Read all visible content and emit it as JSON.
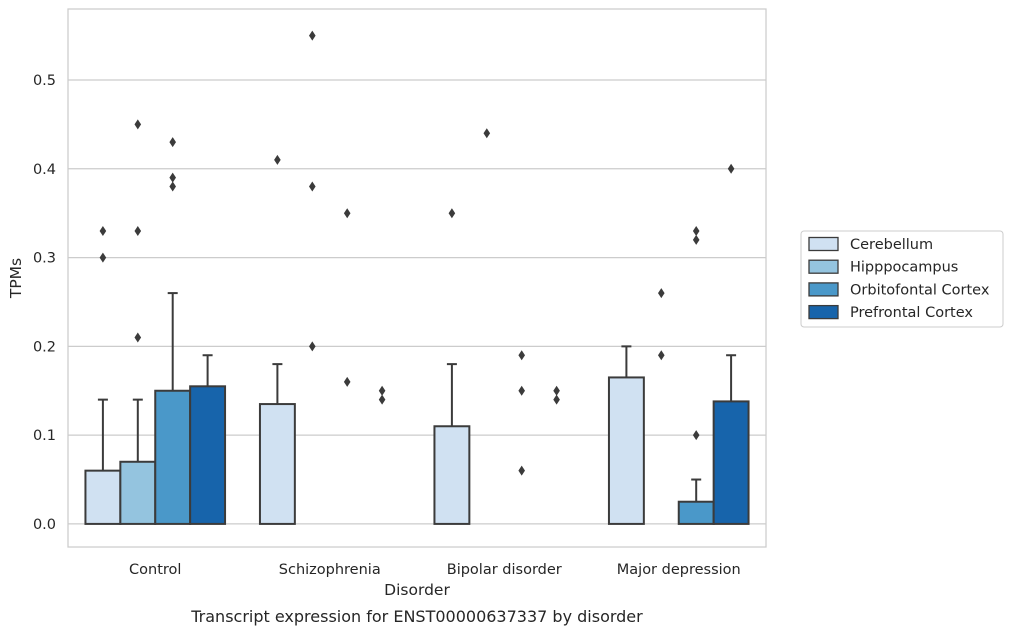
{
  "chart_data": {
    "type": "bar",
    "title": "",
    "caption": "Transcript expression for ENST00000637337 by disorder",
    "xlabel": "Disorder",
    "ylabel": "TPMs",
    "ylim": [
      -0.026,
      0.58
    ],
    "yticks": [
      0.0,
      0.1,
      0.2,
      0.3,
      0.4,
      0.5
    ],
    "ytick_labels": [
      "0.0",
      "0.1",
      "0.2",
      "0.3",
      "0.4",
      "0.5"
    ],
    "grid": "horizontal",
    "legend_position": "right",
    "categories": [
      "Control",
      "Schizophrenia",
      "Bipolar disorder",
      "Major depression"
    ],
    "series": [
      {
        "name": "Cerebellum",
        "color": "#d0e1f2",
        "values": [
          0.06,
          0.135,
          0.11,
          0.165
        ],
        "whisker_high": [
          0.14,
          0.18,
          0.18,
          0.2
        ],
        "outliers": [
          [
            0.3,
            0.33
          ],
          [
            0.41
          ],
          [
            0.35
          ],
          []
        ]
      },
      {
        "name": "Hipppocampus",
        "color": "#94c4df",
        "values": [
          0.07,
          0.0,
          0.0,
          0.0
        ],
        "whisker_high": [
          0.14,
          0.0,
          0.0,
          0.0
        ],
        "outliers": [
          [
            0.21,
            0.33,
            0.45
          ],
          [
            0.2,
            0.38,
            0.55
          ],
          [
            0.44
          ],
          [
            0.19,
            0.26
          ]
        ]
      },
      {
        "name": "Orbitofontal Cortex",
        "color": "#4a98c9",
        "values": [
          0.15,
          0.0,
          0.0,
          0.025
        ],
        "whisker_high": [
          0.26,
          0.0,
          0.0,
          0.05
        ],
        "outliers": [
          [
            0.38,
            0.39,
            0.43
          ],
          [
            0.16,
            0.35
          ],
          [
            0.06,
            0.15,
            0.19
          ],
          [
            0.1,
            0.32,
            0.33
          ]
        ]
      },
      {
        "name": "Prefrontal Cortex",
        "color": "#1764ab",
        "values": [
          0.155,
          0.0,
          0.0,
          0.138
        ],
        "whisker_high": [
          0.19,
          0.0,
          0.0,
          0.19
        ],
        "outliers": [
          [],
          [
            0.14,
            0.15
          ],
          [
            0.14,
            0.15
          ],
          [
            0.4
          ]
        ]
      }
    ]
  }
}
